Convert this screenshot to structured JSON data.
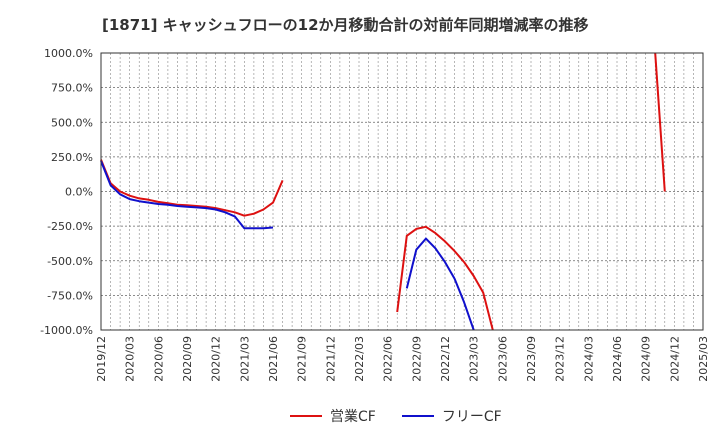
{
  "chart_data": {
    "type": "line",
    "title": "[1871]  キャッシュフローの12か月移動合計の対前年同期増減率の推移",
    "xlabel": "",
    "ylabel": "",
    "ylim": [
      -1000,
      1000
    ],
    "y_ticks": [
      1000,
      750,
      500,
      250,
      0,
      -250,
      -500,
      -750,
      -1000
    ],
    "y_tick_labels": [
      "1000.0%",
      "750.0%",
      "500.0%",
      "250.0%",
      "0.0%",
      "-250.0%",
      "-500.0%",
      "-750.0%",
      "-1000.0%"
    ],
    "x_tick_labels": [
      "2019/12",
      "2020/03",
      "2020/06",
      "2020/09",
      "2020/12",
      "2021/03",
      "2021/06",
      "2021/09",
      "2021/12",
      "2022/03",
      "2022/06",
      "2022/09",
      "2022/12",
      "2023/03",
      "2023/06",
      "2023/09",
      "2023/12",
      "2024/03",
      "2024/06",
      "2024/09",
      "2024/12",
      "2025/03"
    ],
    "grid": true,
    "legend_position": "bottom",
    "series": [
      {
        "name": "営業CF",
        "color": "#dd1111",
        "points": [
          [
            0,
            230
          ],
          [
            1,
            60
          ],
          [
            2,
            0
          ],
          [
            3,
            -30
          ],
          [
            4,
            -50
          ],
          [
            5,
            -60
          ],
          [
            6,
            -75
          ],
          [
            7,
            -85
          ],
          [
            8,
            -95
          ],
          [
            9,
            -100
          ],
          [
            10,
            -105
          ],
          [
            11,
            -110
          ],
          [
            12,
            -120
          ],
          [
            13,
            -135
          ],
          [
            14,
            -150
          ],
          [
            15,
            -175
          ],
          [
            16,
            -160
          ],
          [
            17,
            -130
          ],
          [
            18,
            -80
          ],
          [
            19,
            80
          ],
          null,
          [
            31,
            -870
          ],
          [
            32,
            -320
          ],
          [
            33,
            -270
          ],
          [
            34,
            -255
          ],
          [
            35,
            -300
          ],
          [
            36,
            -360
          ],
          [
            37,
            -430
          ],
          [
            38,
            -510
          ],
          [
            39,
            -610
          ],
          [
            40,
            -730
          ],
          [
            41,
            -1000
          ],
          null,
          [
            58,
            1000
          ],
          [
            59,
            0
          ]
        ]
      },
      {
        "name": "フリーCF",
        "color": "#1010cc",
        "points": [
          [
            0,
            220
          ],
          [
            1,
            45
          ],
          [
            2,
            -20
          ],
          [
            3,
            -55
          ],
          [
            4,
            -70
          ],
          [
            5,
            -80
          ],
          [
            6,
            -90
          ],
          [
            7,
            -95
          ],
          [
            8,
            -105
          ],
          [
            9,
            -110
          ],
          [
            10,
            -115
          ],
          [
            11,
            -120
          ],
          [
            12,
            -130
          ],
          [
            13,
            -150
          ],
          [
            14,
            -180
          ],
          [
            15,
            -265
          ],
          [
            16,
            -265
          ],
          [
            17,
            -265
          ],
          [
            18,
            -260
          ],
          null,
          [
            32,
            -700
          ],
          [
            33,
            -420
          ],
          [
            34,
            -340
          ],
          [
            35,
            -410
          ],
          [
            36,
            -510
          ],
          [
            37,
            -630
          ],
          [
            38,
            -800
          ],
          [
            39,
            -1000
          ]
        ]
      }
    ]
  }
}
